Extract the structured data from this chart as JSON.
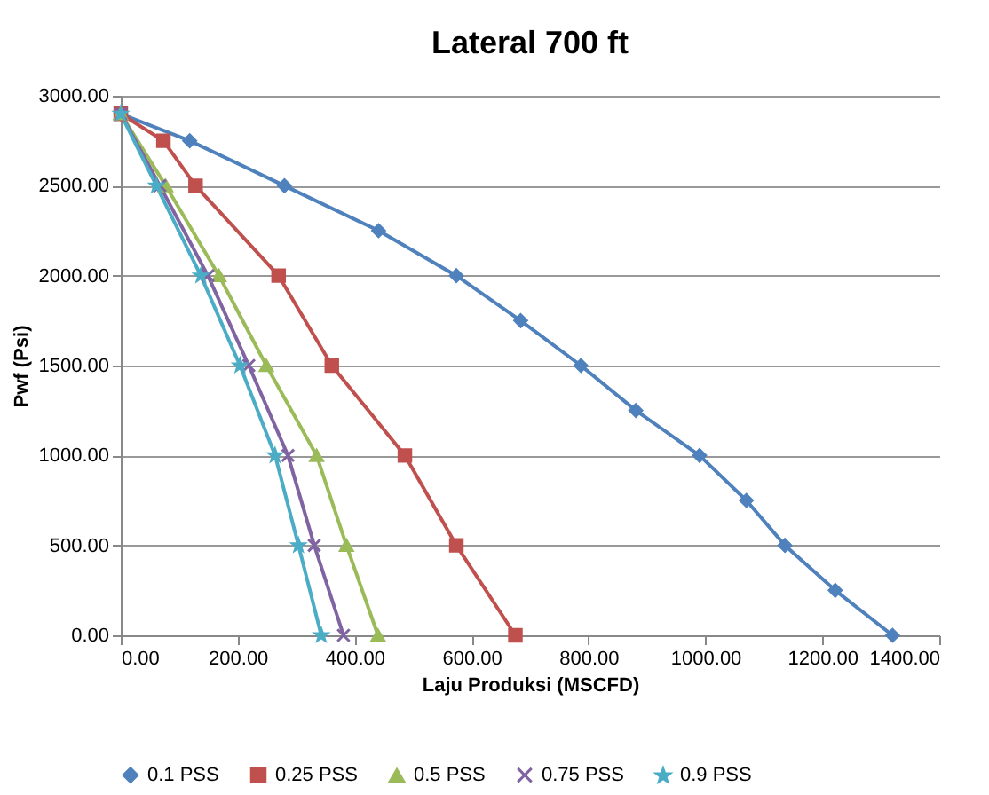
{
  "chart_data": {
    "type": "line",
    "title": "Lateral 700 ft",
    "xlabel": "Laju Produksi (MSCFD)",
    "ylabel": "Pwf (Psi)",
    "series": [
      {
        "name": "0.1 PSS",
        "color": "#4f81bd",
        "marker": "diamond",
        "x": [
          0,
          118,
          280,
          441,
          574,
          684,
          787,
          881,
          990,
          1070,
          1136,
          1222,
          1320
        ],
        "values": [
          2900,
          2750,
          2500,
          2250,
          2000,
          1750,
          1500,
          1250,
          1000,
          750,
          500,
          250,
          0
        ]
      },
      {
        "name": "0.25 PSS",
        "color": "#c0504d",
        "marker": "square",
        "x": [
          0,
          73,
          128,
          270,
          361,
          486,
          574,
          675
        ],
        "values": [
          2900,
          2750,
          2500,
          2000,
          1500,
          1000,
          500,
          0
        ]
      },
      {
        "name": "0.5 PSS",
        "color": "#9bbb59",
        "marker": "triangle",
        "x": [
          0,
          77,
          168,
          249,
          335,
          386,
          440
        ],
        "values": [
          2900,
          2500,
          2000,
          1500,
          1000,
          500,
          0
        ]
      },
      {
        "name": "0.75 PSS",
        "color": "#8064a2",
        "marker": "cross",
        "x": [
          0,
          67,
          149,
          219,
          286,
          331,
          381
        ],
        "values": [
          2900,
          2500,
          2000,
          1500,
          1000,
          500,
          0
        ]
      },
      {
        "name": "0.9 PSS",
        "color": "#4bacc6",
        "marker": "star",
        "x": [
          0,
          61,
          137,
          204,
          264,
          304,
          343
        ],
        "values": [
          2900,
          2500,
          2000,
          1500,
          1000,
          500,
          0
        ]
      }
    ],
    "xlim": [
      0,
      1400
    ],
    "ylim": [
      0,
      3000
    ],
    "xticks": [
      {
        "value": 0,
        "label": "0.00"
      },
      {
        "value": 200,
        "label": "200.00"
      },
      {
        "value": 400,
        "label": "400.00"
      },
      {
        "value": 600,
        "label": "600.00"
      },
      {
        "value": 800,
        "label": "800.00"
      },
      {
        "value": 1000,
        "label": "1000.00"
      },
      {
        "value": 1200,
        "label": "1200.00"
      },
      {
        "value": 1400,
        "label": "1400.00"
      }
    ],
    "yticks": [
      {
        "value": 0,
        "label": "0.00"
      },
      {
        "value": 500,
        "label": "500.00"
      },
      {
        "value": 1000,
        "label": "1000.00"
      },
      {
        "value": 1500,
        "label": "1500.00"
      },
      {
        "value": 2000,
        "label": "2000.00"
      },
      {
        "value": 2500,
        "label": "2500.00"
      },
      {
        "value": 3000,
        "label": "3000.00"
      }
    ],
    "grid": "y",
    "legend": "bottom"
  }
}
